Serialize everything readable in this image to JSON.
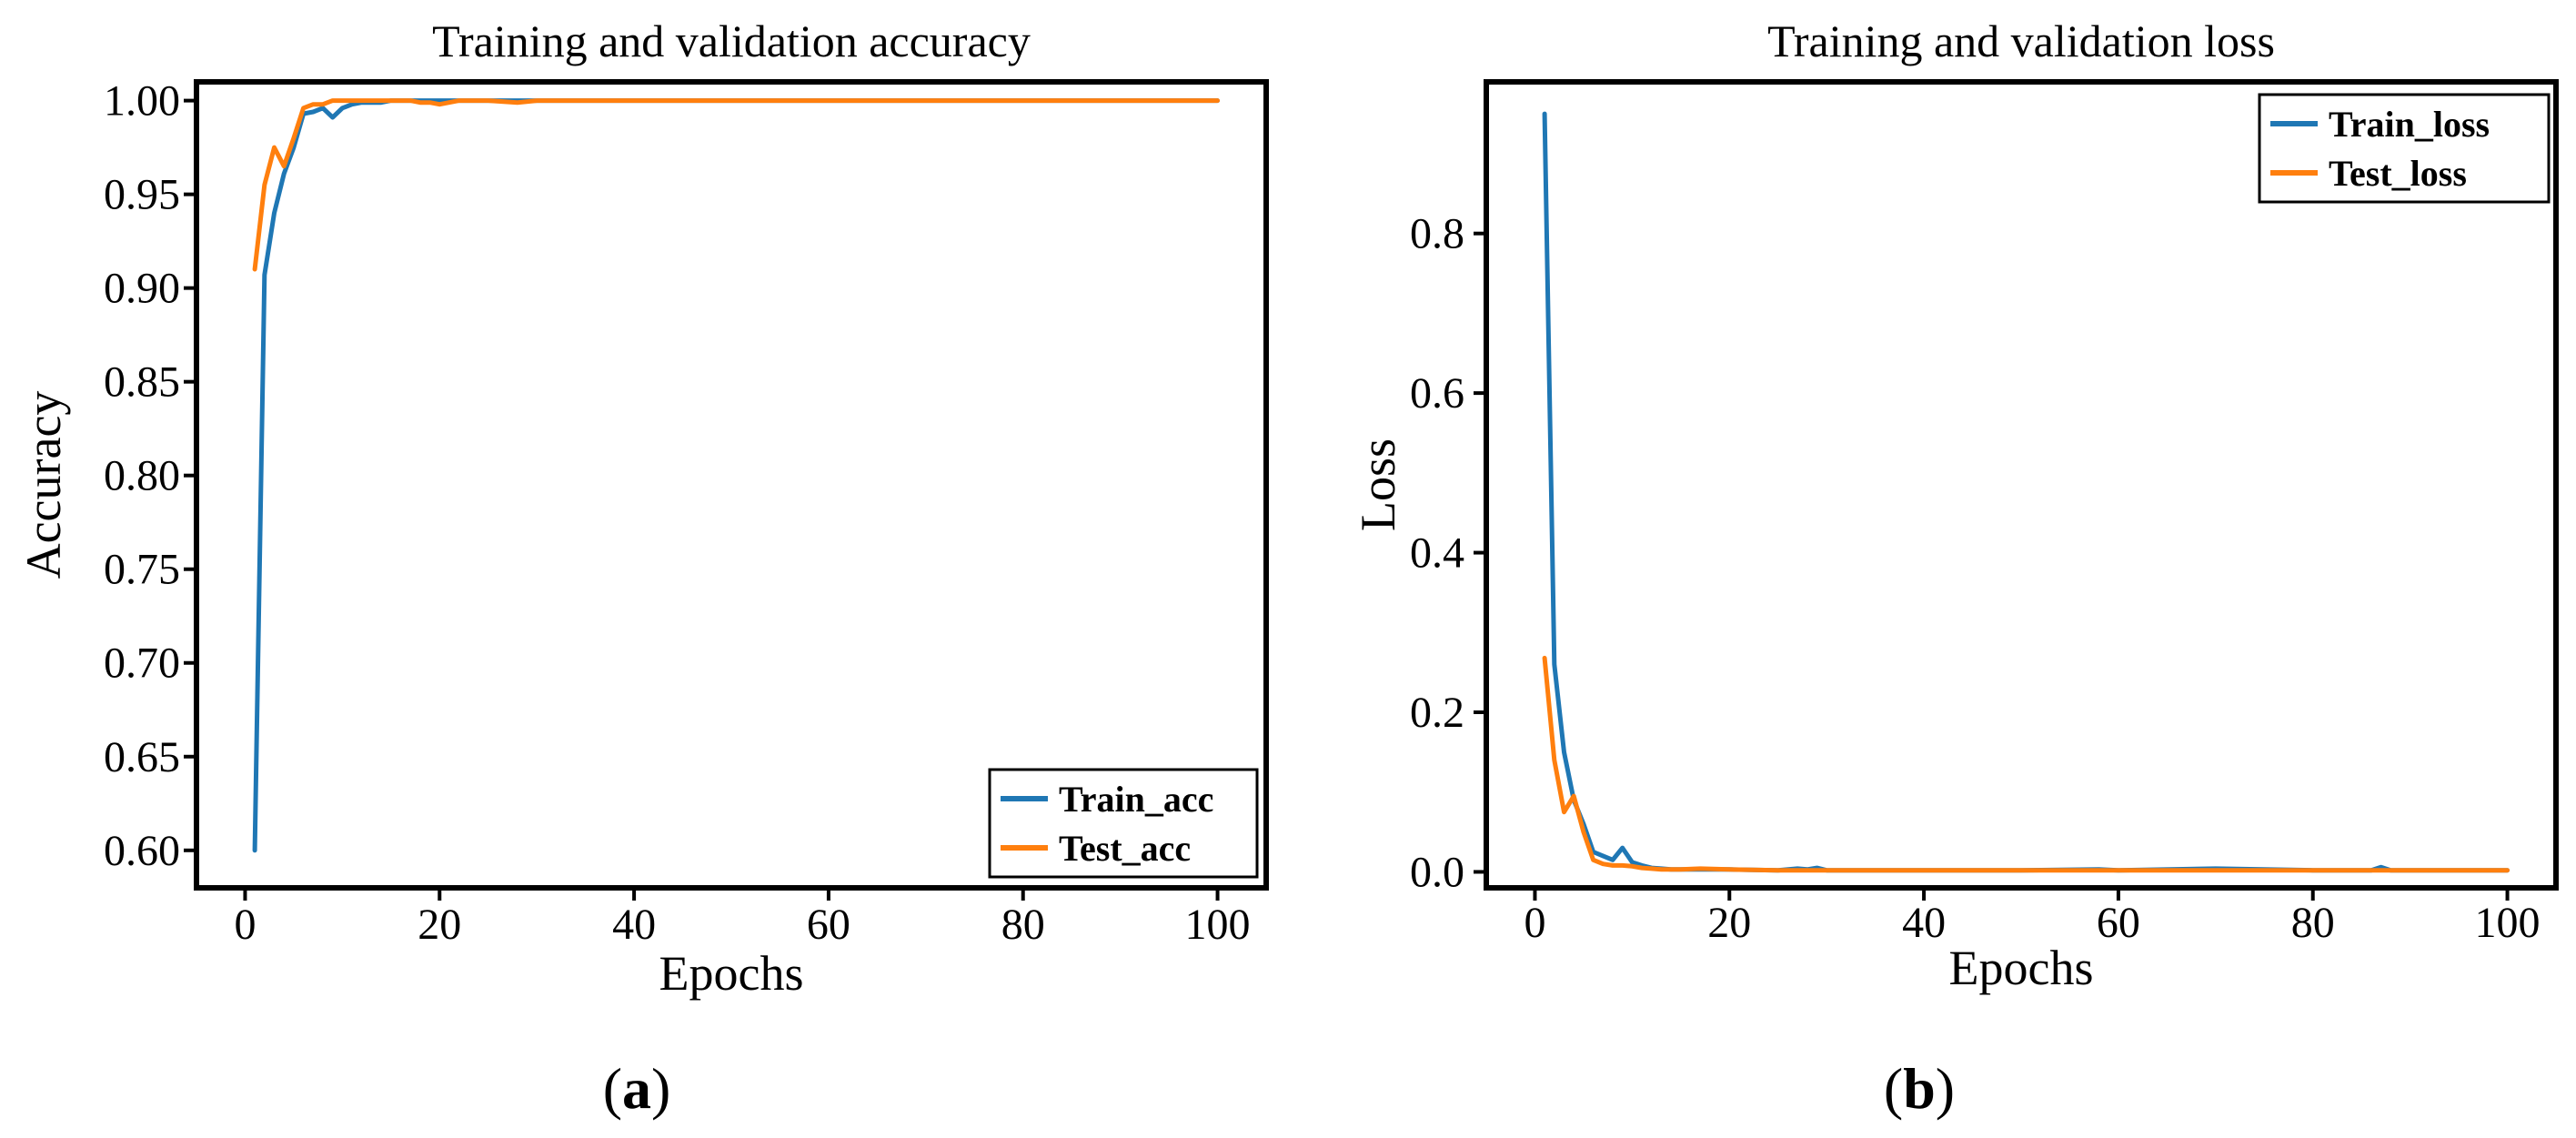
{
  "chart_data": [
    {
      "type": "line",
      "title": "Training and validation accuracy",
      "xlabel": "Epochs",
      "ylabel": "Accuracy",
      "xlim": [
        -5,
        105
      ],
      "ylim": [
        0.58,
        1.01
      ],
      "xticks": [
        0,
        20,
        40,
        60,
        80,
        100
      ],
      "yticks": [
        0.6,
        0.65,
        0.7,
        0.75,
        0.8,
        0.85,
        0.9,
        0.95,
        1.0
      ],
      "ytick_labels": [
        "0.60",
        "0.65",
        "0.70",
        "0.75",
        "0.80",
        "0.85",
        "0.90",
        "0.95",
        "1.00"
      ],
      "legend_position": "bottom-right",
      "panel_label": {
        "open": "(",
        "letter": "a",
        "close": ")"
      },
      "series": [
        {
          "name": "Train_acc",
          "color": "#1f77b4",
          "x": [
            1,
            2,
            3,
            4,
            5,
            6,
            7,
            8,
            9,
            10,
            11,
            12,
            13,
            14,
            15,
            16,
            17,
            18,
            19,
            20,
            22,
            25,
            28,
            30,
            35,
            40,
            50,
            60,
            70,
            80,
            90,
            100
          ],
          "y": [
            0.6,
            0.907,
            0.94,
            0.961,
            0.975,
            0.993,
            0.994,
            0.996,
            0.991,
            0.996,
            0.998,
            0.999,
            0.999,
            0.999,
            1.0,
            1.0,
            1.0,
            1.0,
            1.0,
            1.0,
            1.0,
            1.0,
            1.0,
            1.0,
            1.0,
            1.0,
            1.0,
            1.0,
            1.0,
            1.0,
            1.0,
            1.0
          ]
        },
        {
          "name": "Test_acc",
          "color": "#ff7f0e",
          "x": [
            1,
            2,
            3,
            4,
            5,
            6,
            7,
            8,
            9,
            10,
            11,
            12,
            13,
            14,
            15,
            16,
            17,
            18,
            19,
            20,
            22,
            25,
            28,
            30,
            35,
            40,
            50,
            60,
            70,
            80,
            90,
            100
          ],
          "y": [
            0.91,
            0.955,
            0.975,
            0.965,
            0.98,
            0.996,
            0.998,
            0.998,
            1.0,
            1.0,
            1.0,
            1.0,
            1.0,
            1.0,
            1.0,
            1.0,
            1.0,
            0.999,
            0.999,
            0.998,
            1.0,
            1.0,
            0.999,
            1.0,
            1.0,
            1.0,
            1.0,
            1.0,
            1.0,
            1.0,
            1.0,
            1.0
          ]
        }
      ]
    },
    {
      "type": "line",
      "title": "Training and validation loss",
      "xlabel": "Epochs",
      "ylabel": "Loss",
      "xlim": [
        -5,
        105
      ],
      "ylim": [
        -0.02,
        0.99
      ],
      "xticks": [
        0,
        20,
        40,
        60,
        80,
        100
      ],
      "yticks": [
        0.0,
        0.2,
        0.4,
        0.6,
        0.8
      ],
      "ytick_labels": [
        "0.0",
        "0.2",
        "0.4",
        "0.6",
        "0.8"
      ],
      "legend_position": "top-right",
      "panel_label": {
        "open": "(",
        "letter": "b",
        "close": ")"
      },
      "series": [
        {
          "name": "Train_loss",
          "color": "#1f77b4",
          "x": [
            1,
            2,
            3,
            4,
            5,
            6,
            7,
            8,
            9,
            10,
            11,
            12,
            13,
            14,
            15,
            17,
            20,
            25,
            27,
            28,
            29,
            30,
            40,
            50,
            58,
            60,
            70,
            80,
            86,
            87,
            88,
            100
          ],
          "y": [
            0.95,
            0.26,
            0.15,
            0.09,
            0.06,
            0.025,
            0.02,
            0.015,
            0.03,
            0.012,
            0.008,
            0.005,
            0.004,
            0.003,
            0.003,
            0.003,
            0.003,
            0.002,
            0.004,
            0.003,
            0.005,
            0.002,
            0.002,
            0.002,
            0.003,
            0.002,
            0.004,
            0.002,
            0.002,
            0.006,
            0.002,
            0.002
          ]
        },
        {
          "name": "Test_loss",
          "color": "#ff7f0e",
          "x": [
            1,
            2,
            3,
            4,
            5,
            6,
            7,
            8,
            9,
            10,
            11,
            12,
            13,
            14,
            15,
            17,
            20,
            25,
            30,
            40,
            50,
            60,
            70,
            80,
            90,
            100
          ],
          "y": [
            0.268,
            0.14,
            0.075,
            0.095,
            0.05,
            0.015,
            0.01,
            0.008,
            0.008,
            0.007,
            0.005,
            0.004,
            0.003,
            0.003,
            0.003,
            0.004,
            0.003,
            0.002,
            0.002,
            0.002,
            0.002,
            0.002,
            0.002,
            0.002,
            0.002,
            0.002
          ]
        }
      ]
    }
  ]
}
